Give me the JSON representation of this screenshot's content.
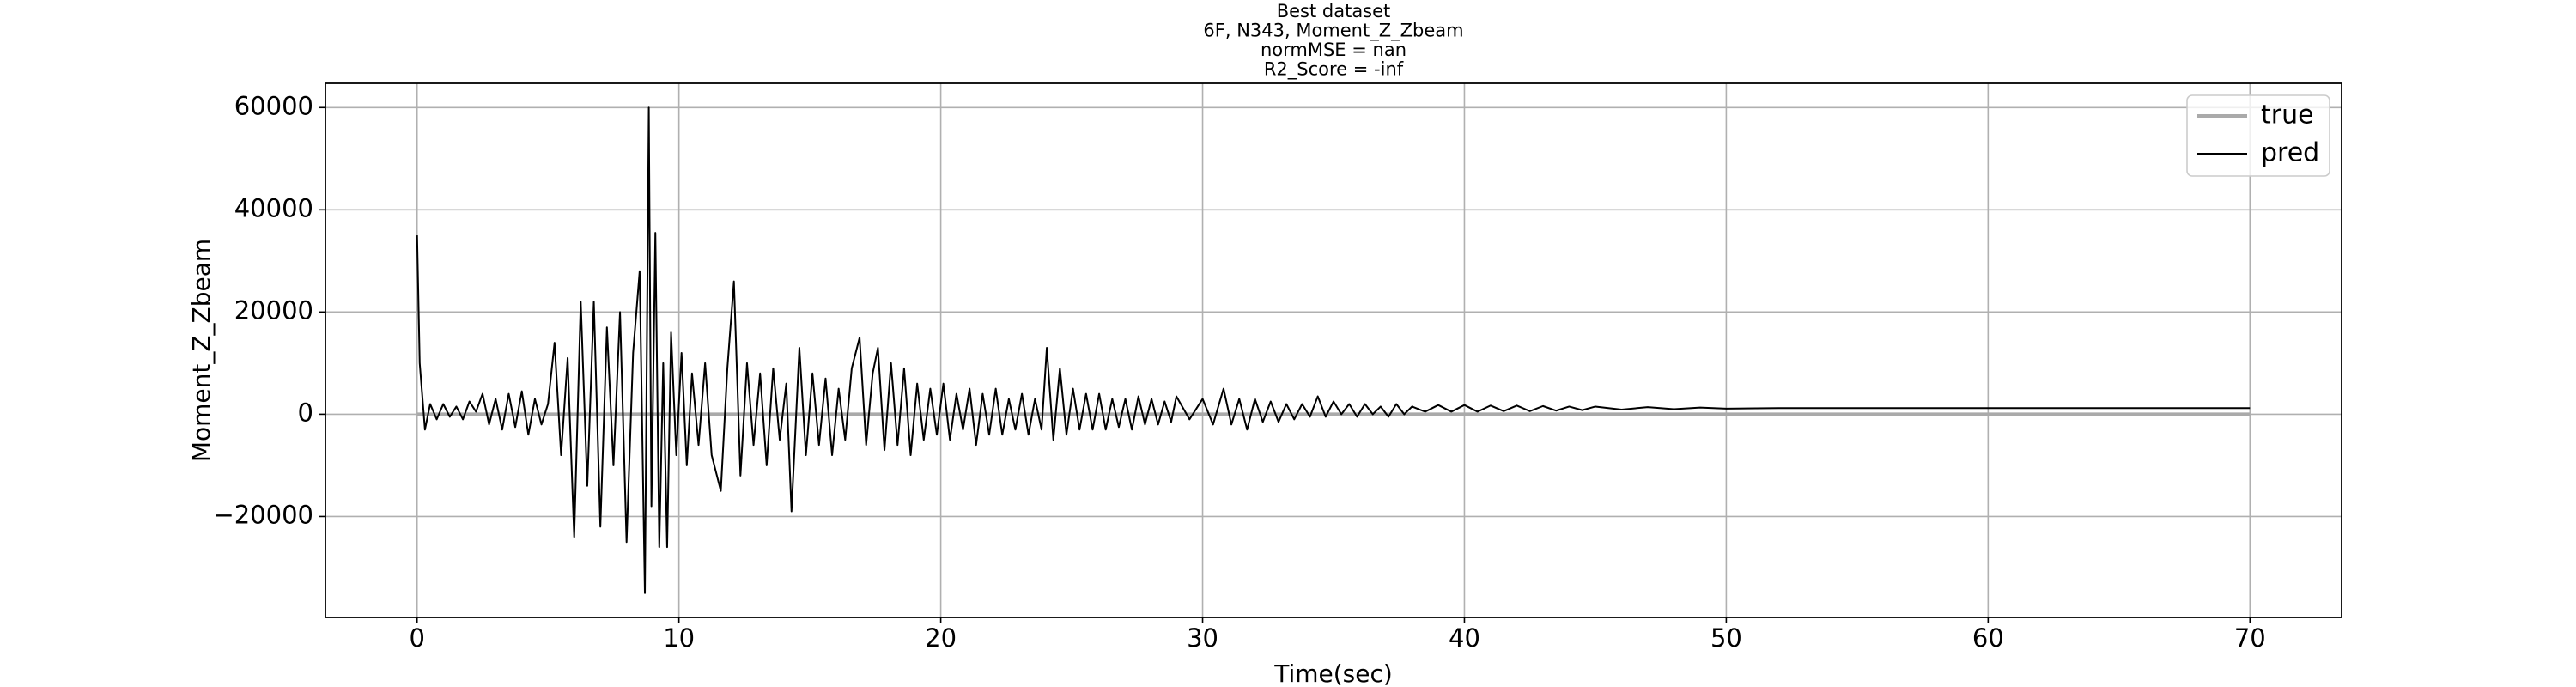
{
  "chart_data": {
    "type": "line",
    "title": [
      "Best dataset",
      "6F, N343, Moment_Z_Zbeam",
      "normMSE = nan",
      "R2_Score = -inf"
    ],
    "xlabel": "Time(sec)",
    "ylabel": "Moment_Z_Zbeam",
    "xlim": [
      -3.5,
      73.5
    ],
    "ylim": [
      -39750,
      64750
    ],
    "xticks": [
      0,
      10,
      20,
      30,
      40,
      50,
      60,
      70
    ],
    "yticks": [
      {
        "value": -20000,
        "label": "−20000"
      },
      0,
      20000,
      40000,
      60000
    ],
    "grid": true,
    "legend": "upper right",
    "x": [
      0,
      0.1,
      0.3,
      0.5,
      0.75,
      1,
      1.25,
      1.5,
      1.75,
      2,
      2.25,
      2.5,
      2.75,
      3,
      3.25,
      3.5,
      3.75,
      4,
      4.25,
      4.5,
      4.75,
      5,
      5.25,
      5.5,
      5.75,
      6,
      6.25,
      6.5,
      6.75,
      7,
      7.25,
      7.5,
      7.75,
      8,
      8.25,
      8.5,
      8.7,
      8.85,
      8.95,
      9.1,
      9.25,
      9.4,
      9.55,
      9.7,
      9.9,
      10.1,
      10.3,
      10.5,
      10.75,
      11,
      11.25,
      11.6,
      11.85,
      12.1,
      12.35,
      12.6,
      12.85,
      13.1,
      13.35,
      13.6,
      13.85,
      14.1,
      14.3,
      14.6,
      14.85,
      15.1,
      15.35,
      15.6,
      15.85,
      16.1,
      16.35,
      16.6,
      16.9,
      17.15,
      17.4,
      17.6,
      17.85,
      18.1,
      18.35,
      18.6,
      18.85,
      19.1,
      19.35,
      19.6,
      19.85,
      20.1,
      20.35,
      20.6,
      20.85,
      21.1,
      21.35,
      21.6,
      21.85,
      22.1,
      22.35,
      22.6,
      22.85,
      23.1,
      23.35,
      23.6,
      23.85,
      24.05,
      24.3,
      24.55,
      24.8,
      25.05,
      25.3,
      25.55,
      25.8,
      26.05,
      26.3,
      26.55,
      26.8,
      27.05,
      27.3,
      27.55,
      27.8,
      28.05,
      28.3,
      28.55,
      28.8,
      29,
      29.5,
      30,
      30.4,
      30.8,
      31.1,
      31.4,
      31.7,
      32,
      32.3,
      32.6,
      32.9,
      33.2,
      33.5,
      33.8,
      34.1,
      34.4,
      34.7,
      35,
      35.3,
      35.6,
      35.9,
      36.2,
      36.5,
      36.8,
      37.1,
      37.4,
      37.7,
      38,
      38.5,
      39,
      39.5,
      40,
      40.5,
      41,
      41.5,
      42,
      42.5,
      43,
      43.5,
      44,
      44.5,
      45,
      46,
      47,
      48,
      49,
      50,
      52,
      55,
      60,
      65,
      70
    ],
    "series": [
      {
        "name": "true",
        "color": "#aaaaaa",
        "values": [
          0,
          0,
          0,
          0,
          0,
          0,
          0,
          0,
          0,
          0,
          0,
          0,
          0,
          0,
          0,
          0,
          0,
          0,
          0,
          0,
          0,
          0,
          0,
          0,
          0,
          0,
          0,
          0,
          0,
          0,
          0,
          0,
          0,
          0,
          0,
          0,
          0,
          0,
          0,
          0,
          0,
          0,
          0,
          0,
          0,
          0,
          0,
          0,
          0,
          0,
          0,
          0,
          0,
          0,
          0,
          0,
          0,
          0,
          0,
          0,
          0,
          0,
          0,
          0,
          0,
          0,
          0,
          0,
          0,
          0,
          0,
          0,
          0,
          0,
          0,
          0,
          0,
          0,
          0,
          0,
          0,
          0,
          0,
          0,
          0,
          0,
          0,
          0,
          0,
          0,
          0,
          0,
          0,
          0,
          0,
          0,
          0,
          0,
          0,
          0,
          0,
          0,
          0,
          0,
          0,
          0,
          0,
          0,
          0,
          0,
          0,
          0,
          0,
          0,
          0,
          0,
          0,
          0,
          0,
          0,
          0,
          0,
          0,
          0,
          0,
          0,
          0,
          0,
          0,
          0,
          0,
          0,
          0,
          0,
          0,
          0,
          0,
          0,
          0,
          0,
          0,
          0,
          0,
          0,
          0,
          0,
          0,
          0,
          0,
          0,
          0,
          0,
          0,
          0,
          0,
          0,
          0,
          0,
          0,
          0,
          0,
          0,
          0,
          0,
          0,
          0,
          0,
          0,
          0,
          0,
          0,
          0,
          0,
          0
        ]
      },
      {
        "name": "pred",
        "color": "#000000",
        "values": [
          35000,
          10000,
          -3000,
          2000,
          -1000,
          2000,
          -500,
          1500,
          -1000,
          2500,
          500,
          4000,
          -2000,
          3000,
          -3000,
          4000,
          -2500,
          4500,
          -4000,
          3000,
          -2000,
          2000,
          14000,
          -8000,
          11000,
          -24000,
          22000,
          -14000,
          22000,
          -22000,
          17000,
          -10000,
          20000,
          -25000,
          12000,
          28000,
          -35000,
          60000,
          -18000,
          35500,
          -26000,
          10000,
          -26000,
          16000,
          -8000,
          12000,
          -10000,
          8000,
          -6000,
          10000,
          -8000,
          -15000,
          9000,
          26000,
          -12000,
          10000,
          -6000,
          8000,
          -10000,
          9000,
          -5000,
          6000,
          -19000,
          13000,
          -8000,
          8000,
          -6000,
          7000,
          -8000,
          5000,
          -5000,
          9000,
          15000,
          -6000,
          8000,
          13000,
          -7000,
          10000,
          -6000,
          9000,
          -8000,
          6000,
          -5000,
          5000,
          -4000,
          6000,
          -5000,
          4000,
          -3000,
          5000,
          -6000,
          4000,
          -4000,
          5000,
          -4000,
          3000,
          -3000,
          4000,
          -4000,
          3000,
          -3000,
          13000,
          -5000,
          9000,
          -4000,
          5000,
          -3000,
          4000,
          -3000,
          4000,
          -3000,
          3000,
          -2500,
          3000,
          -3000,
          3500,
          -2000,
          3000,
          -2000,
          2500,
          -1500,
          3500,
          -1000,
          3000,
          -2000,
          5000,
          -2000,
          3000,
          -3000,
          3000,
          -1500,
          2500,
          -1500,
          2000,
          -1000,
          2000,
          -500,
          3500,
          -500,
          2500,
          0,
          2000,
          -500,
          2000,
          0,
          1500,
          -500,
          2000,
          0,
          1500,
          500,
          1800,
          500,
          1800,
          500,
          1700,
          600,
          1700,
          600,
          1600,
          700,
          1500,
          800,
          1500,
          900,
          1400,
          1000,
          1300,
          1100,
          1200,
          1200,
          1200,
          1200,
          1200
        ]
      }
    ]
  }
}
